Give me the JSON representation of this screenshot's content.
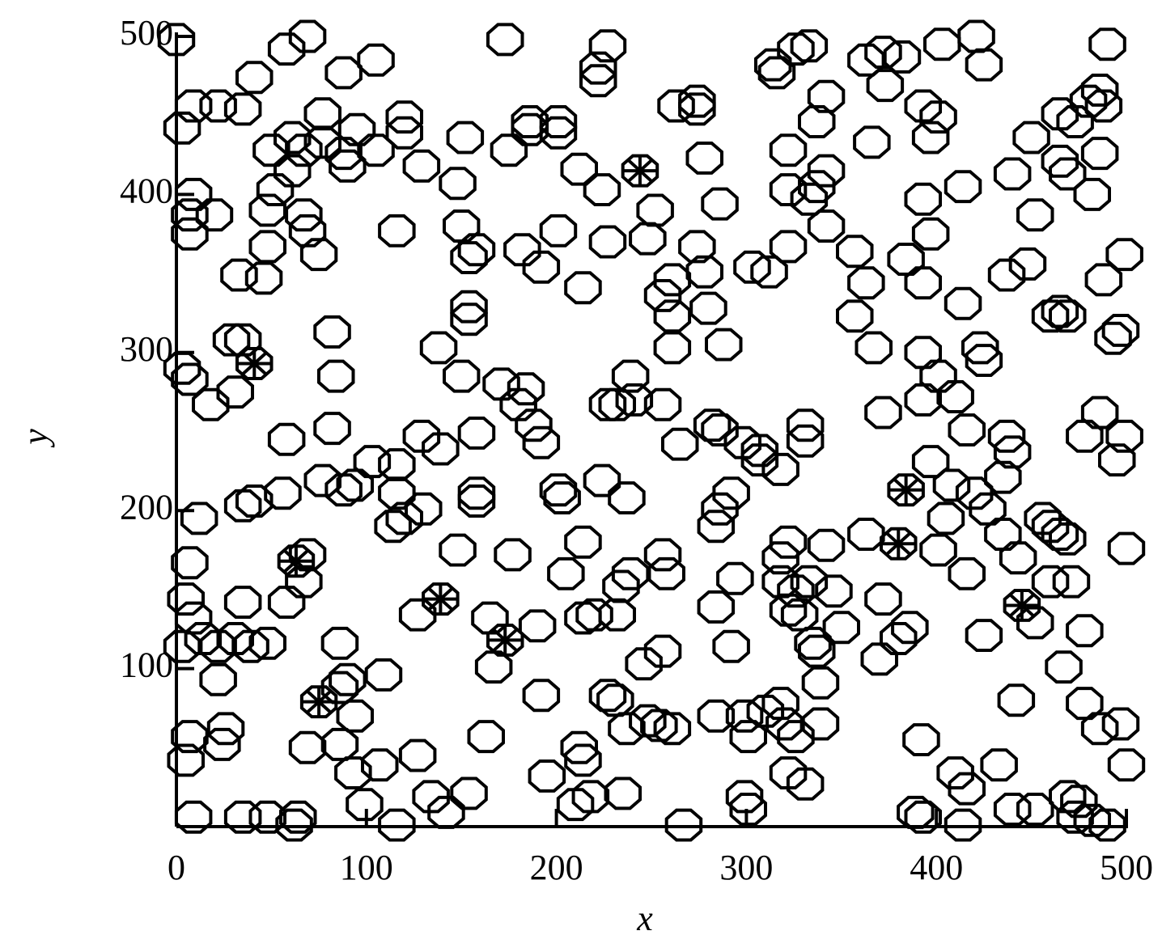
{
  "chart_data": {
    "type": "scatter",
    "xlabel": "x",
    "ylabel": "y",
    "xlim": [
      0,
      500
    ],
    "ylim": [
      0,
      500
    ],
    "xticks": [
      0,
      100,
      200,
      300,
      400,
      500
    ],
    "yticks": [
      100,
      200,
      300,
      400,
      500
    ],
    "series": [
      {
        "marker": "circle",
        "color": "#000000",
        "x": [
          0,
          69,
          58,
          41,
          9,
          22,
          35,
          3,
          173,
          227,
          222,
          222,
          105,
          88,
          77,
          95,
          120,
          120,
          105,
          88,
          90,
          77,
          67,
          61,
          50,
          61,
          52,
          48,
          67,
          69,
          75,
          48,
          46,
          33,
          9,
          7,
          20,
          7,
          129,
          148,
          175,
          186,
          201,
          201,
          186,
          212,
          224,
          116,
          150,
          158,
          154,
          182,
          192,
          201,
          214,
          227,
          152,
          263,
          274,
          278,
          274,
          252,
          248,
          274,
          278,
          261,
          256,
          261,
          261,
          280,
          288,
          256,
          265,
          282,
          303,
          312,
          286,
          314,
          316,
          333,
          326,
          322,
          342,
          337,
          342,
          337,
          333,
          322,
          342,
          322,
          357,
          363,
          372,
          382,
          403,
          421,
          425,
          373,
          366,
          393,
          401,
          397,
          414,
          393,
          397,
          384,
          393,
          414,
          363,
          357,
          367,
          393,
          401,
          410,
          393,
          372,
          423,
          425,
          440,
          450,
          448,
          437,
          452,
          460,
          465,
          469,
          465,
          469,
          473,
          465,
          482,
          486,
          480,
          486,
          488,
          490,
          499,
          488,
          493,
          497,
          486,
          499,
          478,
          495,
          500,
          3,
          7,
          18,
          31,
          29,
          35,
          82,
          84,
          82,
          58,
          56,
          35,
          41,
          12,
          7,
          5,
          9,
          14,
          22,
          31,
          22,
          35,
          39,
          48,
          3,
          7,
          5,
          26,
          24,
          58,
          67,
          69,
          77,
          88,
          94,
          103,
          116,
          116,
          114,
          120,
          130,
          129,
          139,
          138,
          150,
          154,
          154,
          158,
          158,
          158,
          148,
          86,
          90,
          86,
          94,
          86,
          93,
          69,
          109,
          107,
          99,
          127,
          134,
          142,
          154,
          163,
          116,
          62,
          64,
          35,
          48,
          9,
          127,
          177,
          165,
          167,
          190,
          192,
          201,
          203,
          192,
          188,
          184,
          171,
          180,
          205,
          214,
          214,
          220,
          232,
          234,
          239,
          224,
          237,
          227,
          232,
          239,
          241,
          256,
          258,
          246,
          256,
          227,
          231,
          237,
          248,
          261,
          254,
          235,
          212,
          214,
          218,
          210,
          195,
          267,
          284,
          284,
          286,
          292,
          294,
          292,
          284,
          299,
          301,
          299,
          301,
          310,
          318,
          320,
          322,
          326,
          331,
          339,
          339,
          337,
          335,
          328,
          322,
          326,
          333,
          346,
          350,
          342,
          322,
          318,
          318,
          298,
          307,
          318,
          307,
          331,
          331,
          286,
          363,
          372,
          370,
          380,
          386,
          392,
          389,
          393,
          410,
          416,
          414,
          433,
          442,
          425,
          416,
          401,
          405,
          408,
          397,
          416,
          420,
          427,
          435,
          437,
          440,
          435,
          443,
          456,
          460,
          465,
          469,
          471,
          460,
          452,
          478,
          467,
          478,
          486,
          497,
          500,
          469,
          475,
          473,
          490,
          482,
          440,
          452
        ],
        "y": [
          498,
          500,
          492,
          474,
          456,
          456,
          454,
          442,
          498,
          494,
          480,
          472,
          485,
          477,
          451,
          441,
          449,
          439,
          428,
          426,
          418,
          433,
          428,
          436,
          428,
          415,
          403,
          390,
          387,
          377,
          362,
          367,
          347,
          349,
          400,
          387,
          387,
          375,
          418,
          407,
          428,
          446,
          446,
          439,
          441,
          416,
          403,
          377,
          380,
          365,
          360,
          365,
          354,
          377,
          341,
          370,
          436,
          456,
          459,
          423,
          454,
          390,
          372,
          367,
          351,
          346,
          336,
          323,
          303,
          328,
          305,
          267,
          242,
          254,
          354,
          351,
          394,
          482,
          477,
          494,
          492,
          428,
          462,
          446,
          415,
          405,
          397,
          403,
          380,
          367,
          364,
          485,
          490,
          487,
          495,
          500,
          482,
          469,
          433,
          456,
          449,
          436,
          405,
          397,
          375,
          359,
          344,
          331,
          344,
          323,
          303,
          300,
          285,
          272,
          270,
          262,
          303,
          295,
          413,
          436,
          356,
          349,
          387,
          323,
          326,
          323,
          421,
          413,
          446,
          451,
          400,
          426,
          459,
          466,
          456,
          495,
          362,
          346,
          309,
          314,
          262,
          247,
          247,
          232,
          176,
          290,
          283,
          267,
          275,
          308,
          308,
          313,
          285,
          252,
          245,
          211,
          203,
          206,
          195,
          167,
          144,
          132,
          119,
          114,
          119,
          93,
          142,
          114,
          116,
          114,
          57,
          42,
          62,
          52,
          142,
          155,
          172,
          219,
          213,
          216,
          231,
          229,
          211,
          190,
          195,
          201,
          247,
          239,
          303,
          285,
          321,
          329,
          249,
          211,
          206,
          175,
          116,
          93,
          88,
          70,
          52,
          34,
          50,
          96,
          39,
          14,
          45,
          19,
          9,
          21,
          57,
          1,
          1,
          6,
          6,
          6,
          6,
          134,
          172,
          132,
          101,
          127,
          83,
          213,
          208,
          243,
          254,
          277,
          280,
          267,
          160,
          180,
          132,
          134,
          134,
          152,
          160,
          219,
          208,
          267,
          267,
          285,
          270,
          172,
          160,
          103,
          111,
          83,
          80,
          62,
          67,
          62,
          64,
          21,
          50,
          42,
          19,
          14,
          32,
          1,
          139,
          190,
          201,
          211,
          157,
          114,
          70,
          70,
          57,
          19,
          11,
          73,
          78,
          65,
          34,
          57,
          27,
          65,
          91,
          111,
          116,
          134,
          137,
          149,
          155,
          149,
          126,
          178,
          180,
          170,
          155,
          243,
          232,
          226,
          238,
          254,
          244,
          251,
          185,
          144,
          106,
          119,
          126,
          55,
          9,
          6,
          34,
          24,
          1,
          39,
          80,
          121,
          160,
          175,
          195,
          216,
          231,
          251,
          211,
          201,
          221,
          247,
          237,
          185,
          170,
          195,
          190,
          185,
          182,
          155,
          155,
          129,
          124,
          101,
          78,
          62,
          65,
          39,
          19,
          16,
          6,
          1,
          4,
          11,
          11
        ]
      },
      {
        "marker": "asterisk-circle",
        "color": "#000000",
        "x": [
          41,
          63,
          75,
          139,
          173,
          244,
          384,
          380,
          445
        ],
        "y": [
          293,
          168,
          79,
          144,
          118,
          415,
          213,
          179,
          140
        ]
      }
    ]
  }
}
